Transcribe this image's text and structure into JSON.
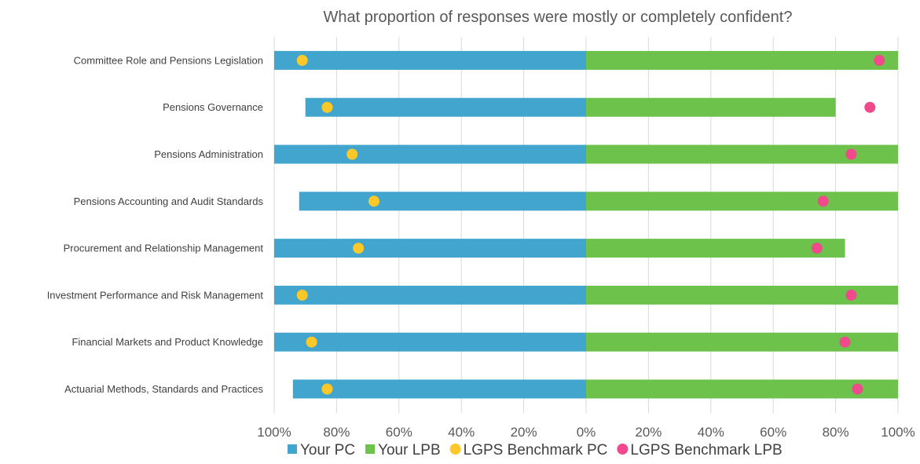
{
  "chart_data": {
    "type": "bar",
    "title": "What proportion of responses were mostly or completely confident?",
    "categories": [
      "Committee Role and Pensions Legislation",
      "Pensions Governance",
      "Pensions Administration",
      "Pensions Accounting and Audit Standards",
      "Procurement and Relationship Management",
      "Investment Performance and Risk Management",
      "Financial Markets and Product Knowledge",
      "Actuarial Methods, Standards and Practices"
    ],
    "series": [
      {
        "name": "Your PC",
        "kind": "bar",
        "side": "left",
        "color": "#41A5CD",
        "values": [
          100,
          90,
          100,
          92,
          100,
          100,
          100,
          94
        ]
      },
      {
        "name": "Your LPB",
        "kind": "bar",
        "side": "right",
        "color": "#6CC24A",
        "values": [
          100,
          80,
          100,
          100,
          83,
          100,
          100,
          100
        ]
      },
      {
        "name": "LGPS Benchmark PC",
        "kind": "marker",
        "side": "left",
        "color": "#FFC829",
        "values": [
          91,
          83,
          75,
          68,
          73,
          91,
          88,
          83
        ]
      },
      {
        "name": "LGPS Benchmark LPB",
        "kind": "marker",
        "side": "right",
        "color": "#F0498C",
        "values": [
          94,
          91,
          85,
          76,
          74,
          85,
          83,
          87
        ]
      }
    ],
    "x_ticks": [
      "100%",
      "80%",
      "60%",
      "40%",
      "20%",
      "0%",
      "20%",
      "40%",
      "60%",
      "80%",
      "100%"
    ],
    "xlim": [
      -100,
      100
    ],
    "grid": "vertical",
    "legend_position": "bottom"
  }
}
